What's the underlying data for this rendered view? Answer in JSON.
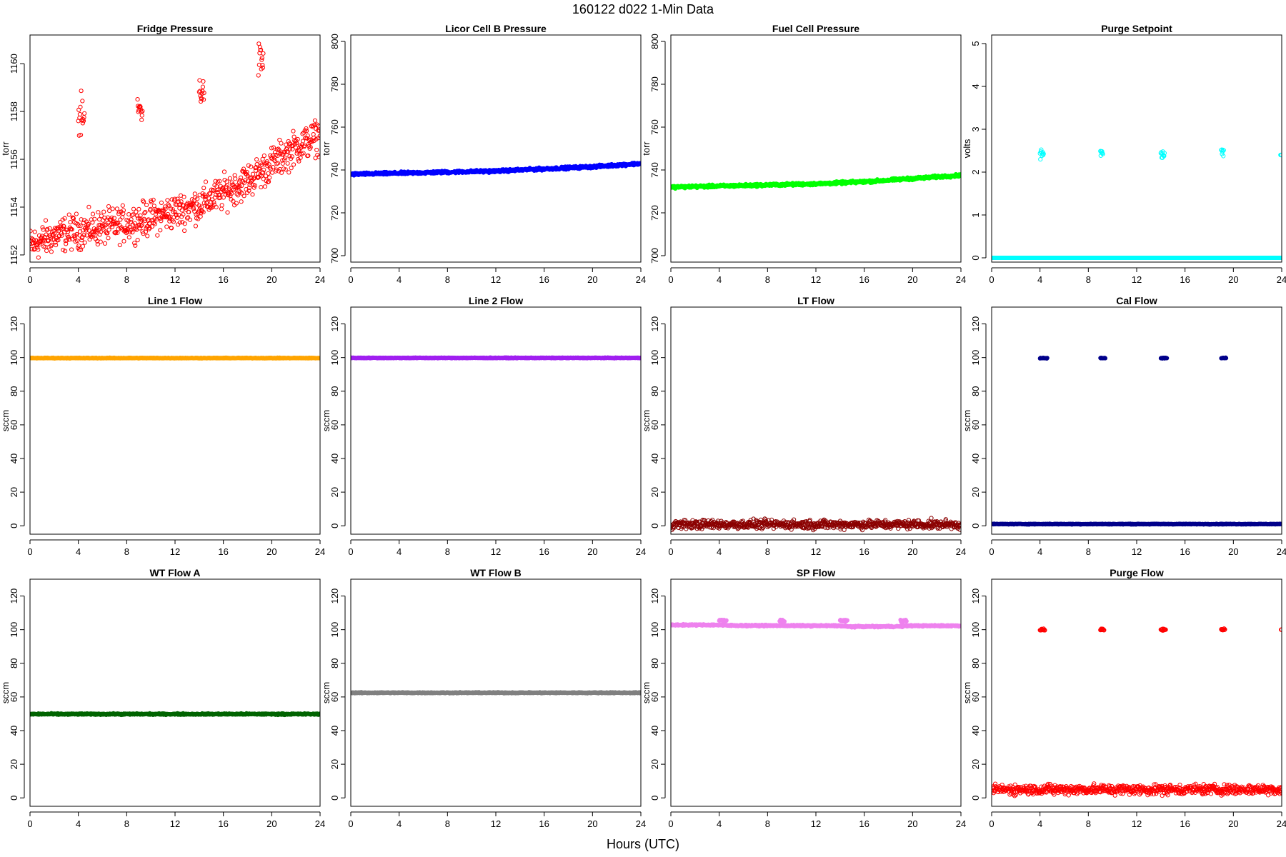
{
  "figure": {
    "title": "160122    d022    1-Min Data",
    "xlabel": "Hours (UTC)"
  },
  "chart_data": [
    {
      "type": "scatter",
      "title": "Fridge Pressure",
      "ylabel": "torr",
      "color": "#ff0000",
      "marker": "open-circle",
      "xlim": [
        0,
        24
      ],
      "ylim": [
        1151.7,
        1161.2
      ],
      "xticks": [
        0,
        4,
        8,
        12,
        16,
        20,
        24
      ],
      "yticks": [
        1152,
        1154,
        1156,
        1158,
        1160
      ],
      "baseline": [
        [
          0,
          1152.4
        ],
        [
          2,
          1152.8
        ],
        [
          4,
          1153.0
        ],
        [
          8,
          1153.3
        ],
        [
          12,
          1153.8
        ],
        [
          14,
          1154.1
        ],
        [
          16,
          1154.6
        ],
        [
          18,
          1155.1
        ],
        [
          20,
          1155.8
        ],
        [
          22,
          1156.5
        ],
        [
          24,
          1157.0
        ]
      ],
      "noise": 0.35,
      "spikes": [
        {
          "x": [
            4.0,
            4.5
          ],
          "y": 1157.7,
          "spread": 0.45
        },
        {
          "x": [
            8.9,
            9.3
          ],
          "y": 1158.1,
          "spread": 0.3
        },
        {
          "x": [
            14.0,
            14.4
          ],
          "y": 1158.8,
          "spread": 0.3
        },
        {
          "x": [
            18.9,
            19.3
          ],
          "y": 1160.1,
          "spread": 0.4
        }
      ]
    },
    {
      "type": "scatter",
      "title": "Licor Cell B Pressure",
      "ylabel": "torr",
      "color": "#0000ff",
      "marker": "filled",
      "xlim": [
        0,
        24
      ],
      "ylim": [
        697,
        803
      ],
      "xticks": [
        0,
        4,
        8,
        12,
        16,
        20,
        24
      ],
      "yticks": [
        700,
        720,
        740,
        760,
        780,
        800
      ],
      "baseline": [
        [
          0,
          738
        ],
        [
          12,
          739.5
        ],
        [
          16,
          740.5
        ],
        [
          20,
          741.5
        ],
        [
          24,
          743
        ]
      ],
      "noise": 0.3,
      "spikes": []
    },
    {
      "type": "scatter",
      "title": "Fuel Cell Pressure",
      "ylabel": "torr",
      "color": "#00ff00",
      "marker": "filled",
      "xlim": [
        0,
        24
      ],
      "ylim": [
        697,
        803
      ],
      "xticks": [
        0,
        4,
        8,
        12,
        16,
        20,
        24
      ],
      "yticks": [
        700,
        720,
        740,
        760,
        780,
        800
      ],
      "baseline": [
        [
          0,
          732
        ],
        [
          12,
          733.5
        ],
        [
          16,
          734.5
        ],
        [
          20,
          736
        ],
        [
          24,
          737.5
        ]
      ],
      "noise": 0.3,
      "spikes": []
    },
    {
      "type": "scatter",
      "title": "Purge Setpoint",
      "ylabel": "volts",
      "color": "#00ffff",
      "marker": "open-circle",
      "xlim": [
        0,
        24
      ],
      "ylim": [
        -0.1,
        5.2
      ],
      "xticks": [
        0,
        4,
        8,
        12,
        16,
        20,
        24
      ],
      "yticks": [
        0,
        1,
        2,
        3,
        4,
        5
      ],
      "baseline": [
        [
          0,
          0
        ],
        [
          24,
          0
        ]
      ],
      "noise": 0.0,
      "base_marker": "filled",
      "spikes": [
        {
          "x": [
            4.0,
            4.3
          ],
          "y": 2.43,
          "spread": 0.06
        },
        {
          "x": [
            9.0,
            9.2
          ],
          "y": 2.44,
          "spread": 0.04
        },
        {
          "x": [
            14.0,
            14.3
          ],
          "y": 2.43,
          "spread": 0.05
        },
        {
          "x": [
            19.0,
            19.2
          ],
          "y": 2.46,
          "spread": 0.04
        },
        {
          "x": [
            23.9,
            24.0
          ],
          "y": 2.4,
          "spread": 0.0
        }
      ]
    },
    {
      "type": "scatter",
      "title": "Line 1 Flow",
      "ylabel": "sccm",
      "color": "#ffa500",
      "marker": "filled",
      "xlim": [
        0,
        24
      ],
      "ylim": [
        -5,
        130
      ],
      "xticks": [
        0,
        4,
        8,
        12,
        16,
        20,
        24
      ],
      "yticks": [
        0,
        20,
        40,
        60,
        80,
        100,
        120
      ],
      "baseline": [
        [
          0,
          99.7
        ],
        [
          24,
          99.7
        ]
      ],
      "noise": 0.1,
      "spikes": []
    },
    {
      "type": "scatter",
      "title": "Line 2 Flow",
      "ylabel": "sccm",
      "color": "#a020f0",
      "marker": "filled",
      "xlim": [
        0,
        24
      ],
      "ylim": [
        -5,
        130
      ],
      "xticks": [
        0,
        4,
        8,
        12,
        16,
        20,
        24
      ],
      "yticks": [
        0,
        20,
        40,
        60,
        80,
        100,
        120
      ],
      "baseline": [
        [
          0,
          99.8
        ],
        [
          24,
          99.8
        ]
      ],
      "noise": 0.1,
      "spikes": []
    },
    {
      "type": "scatter",
      "title": "LT Flow",
      "ylabel": "sccm",
      "color": "#8b0000",
      "marker": "open-circle",
      "xlim": [
        0,
        24
      ],
      "ylim": [
        -5,
        130
      ],
      "xticks": [
        0,
        4,
        8,
        12,
        16,
        20,
        24
      ],
      "yticks": [
        0,
        20,
        40,
        60,
        80,
        100,
        120
      ],
      "baseline": [
        [
          0,
          0.8
        ],
        [
          24,
          0.8
        ]
      ],
      "noise": 1.3,
      "spikes": []
    },
    {
      "type": "scatter",
      "title": "Cal Flow",
      "ylabel": "sccm",
      "color": "#00008b",
      "marker": "filled",
      "xlim": [
        0,
        24
      ],
      "ylim": [
        -5,
        130
      ],
      "xticks": [
        0,
        4,
        8,
        12,
        16,
        20,
        24
      ],
      "yticks": [
        0,
        20,
        40,
        60,
        80,
        100,
        120
      ],
      "baseline": [
        [
          0,
          1.0
        ],
        [
          24,
          1.0
        ]
      ],
      "noise": 0.1,
      "spikes": [
        {
          "x": [
            4.0,
            4.6
          ],
          "y": 99.7,
          "spread": 0.1
        },
        {
          "x": [
            9.0,
            9.4
          ],
          "y": 99.7,
          "spread": 0.1
        },
        {
          "x": [
            14.0,
            14.5
          ],
          "y": 99.7,
          "spread": 0.1
        },
        {
          "x": [
            19.0,
            19.4
          ],
          "y": 99.7,
          "spread": 0.1
        }
      ]
    },
    {
      "type": "scatter",
      "title": "WT Flow A",
      "ylabel": "sccm",
      "color": "#006400",
      "marker": "filled",
      "xlim": [
        0,
        24
      ],
      "ylim": [
        -5,
        130
      ],
      "xticks": [
        0,
        4,
        8,
        12,
        16,
        20,
        24
      ],
      "yticks": [
        0,
        20,
        40,
        60,
        80,
        100,
        120
      ],
      "baseline": [
        [
          0,
          49.8
        ],
        [
          24,
          49.8
        ]
      ],
      "noise": 0.2,
      "spikes": []
    },
    {
      "type": "scatter",
      "title": "WT Flow B",
      "ylabel": "sccm",
      "color": "#808080",
      "marker": "filled",
      "xlim": [
        0,
        24
      ],
      "ylim": [
        -5,
        130
      ],
      "xticks": [
        0,
        4,
        8,
        12,
        16,
        20,
        24
      ],
      "yticks": [
        0,
        20,
        40,
        60,
        80,
        100,
        120
      ],
      "baseline": [
        [
          0,
          62.5
        ],
        [
          24,
          62.5
        ]
      ],
      "noise": 0.15,
      "spikes": []
    },
    {
      "type": "scatter",
      "title": "SP Flow",
      "ylabel": "sccm",
      "color": "#ee82ee",
      "marker": "filled",
      "xlim": [
        0,
        24
      ],
      "ylim": [
        -5,
        130
      ],
      "xticks": [
        0,
        4,
        8,
        12,
        16,
        20,
        24
      ],
      "yticks": [
        0,
        20,
        40,
        60,
        80,
        100,
        120
      ],
      "baseline": [
        [
          0,
          102.8
        ],
        [
          4.0,
          102.8
        ],
        [
          4.6,
          102.5
        ],
        [
          9.4,
          102.4
        ],
        [
          14.0,
          102.3
        ],
        [
          14.6,
          101.8
        ],
        [
          19.0,
          101.9
        ],
        [
          19.5,
          102.3
        ],
        [
          24,
          102.3
        ]
      ],
      "noise": 0.2,
      "spikes": [
        {
          "x": [
            4.0,
            4.6
          ],
          "y": 105.5,
          "spread": 0.3
        },
        {
          "x": [
            9.0,
            9.4
          ],
          "y": 105.2,
          "spread": 0.3
        },
        {
          "x": [
            14.0,
            14.6
          ],
          "y": 105.3,
          "spread": 0.3
        },
        {
          "x": [
            19.0,
            19.5
          ],
          "y": 105.1,
          "spread": 0.3
        }
      ]
    },
    {
      "type": "scatter",
      "title": "Purge Flow",
      "ylabel": "sccm",
      "color": "#ff0000",
      "marker": "open-circle",
      "xlim": [
        0,
        24
      ],
      "ylim": [
        -5,
        130
      ],
      "xticks": [
        0,
        4,
        8,
        12,
        16,
        20,
        24
      ],
      "yticks": [
        0,
        20,
        40,
        60,
        80,
        100,
        120
      ],
      "baseline": [
        [
          0,
          5.0
        ],
        [
          24,
          5.0
        ]
      ],
      "noise": 1.5,
      "spikes": [
        {
          "x": [
            4.0,
            4.4
          ],
          "y": 100.0,
          "spread": 0.4
        },
        {
          "x": [
            9.0,
            9.3
          ],
          "y": 100.0,
          "spread": 0.3
        },
        {
          "x": [
            14.0,
            14.4
          ],
          "y": 100.0,
          "spread": 0.3
        },
        {
          "x": [
            19.0,
            19.3
          ],
          "y": 100.0,
          "spread": 0.3
        },
        {
          "x": [
            23.95,
            24.0
          ],
          "y": 100.0,
          "spread": 0.0
        }
      ]
    }
  ]
}
